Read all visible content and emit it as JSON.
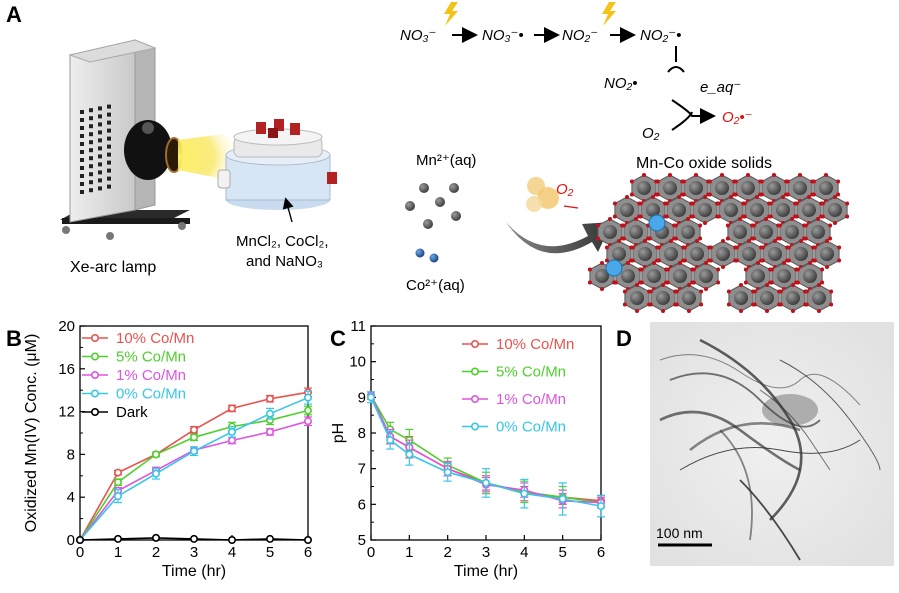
{
  "panels": {
    "A": "A",
    "B": "B",
    "C": "C",
    "D": "D"
  },
  "panel_a": {
    "lamp_label": "Xe-arc lamp",
    "reactor_label_line1": "MnCl₂, CoCl₂,",
    "reactor_label_line2": "and NaNO₃",
    "mn_ion": "Mn²⁺(aq)",
    "co_ion": "Co²⁺(aq)",
    "o2_label": "O₂",
    "solid_label": "Mn-Co oxide solids",
    "scheme": {
      "nitrate": "NO₃⁻",
      "nitrate_radical": "NO₃⁻•",
      "nitrite": "NO₂⁻",
      "nitrite_radical": "NO₂⁻•",
      "no2_radical": "NO₂•",
      "eaq": "e_aq⁻",
      "o2": "O₂",
      "superoxide": "O₂•⁻"
    },
    "colors": {
      "superoxide": "#e01010",
      "bolt": "#f3c318"
    }
  },
  "panel_d": {
    "scale_bar": "100 nm"
  },
  "chart_data": [
    {
      "id": "B",
      "type": "line",
      "xlabel": "Time (hr)",
      "ylabel": "Oxidized Mn(IV) Conc. (μM)",
      "xlim": [
        0,
        6
      ],
      "ylim": [
        0,
        20
      ],
      "xticks": [
        0,
        1,
        2,
        3,
        4,
        5,
        6
      ],
      "yticks": [
        0,
        4,
        8,
        12,
        16,
        20
      ],
      "legend_position": "top-left",
      "x": [
        0,
        1,
        2,
        3,
        4,
        5,
        6
      ],
      "series": [
        {
          "name": "10% Co/Mn",
          "color": "#e8534f",
          "values": [
            0,
            6.3,
            8.0,
            10.3,
            12.3,
            13.2,
            13.8
          ],
          "err": [
            0,
            0.2,
            0.2,
            0.3,
            0.3,
            0.3,
            0.4
          ]
        },
        {
          "name": "5%  Co/Mn",
          "color": "#4fcf2d",
          "values": [
            0,
            5.4,
            8.0,
            9.6,
            10.6,
            11.2,
            12.1
          ],
          "err": [
            0,
            0.3,
            0.2,
            0.3,
            0.4,
            0.4,
            0.4
          ]
        },
        {
          "name": "1%  Co/Mn",
          "color": "#dd55e0",
          "values": [
            0,
            4.6,
            6.5,
            8.4,
            9.3,
            10.1,
            11.1
          ],
          "err": [
            0,
            0.3,
            0.3,
            0.3,
            0.3,
            0.3,
            0.4
          ]
        },
        {
          "name": "0%  Co/Mn",
          "color": "#38c6e8",
          "values": [
            0,
            4.1,
            6.2,
            8.3,
            10.1,
            11.8,
            13.3
          ],
          "err": [
            0,
            0.6,
            0.5,
            0.4,
            0.5,
            0.5,
            0.6
          ]
        },
        {
          "name": "Dark",
          "color": "#000000",
          "values": [
            0,
            0.1,
            0.2,
            0.1,
            0.0,
            0.1,
            0.0
          ],
          "err": [
            0,
            0,
            0,
            0,
            0,
            0,
            0
          ]
        }
      ]
    },
    {
      "id": "C",
      "type": "line",
      "xlabel": "Time (hr)",
      "ylabel": "pH",
      "xlim": [
        0,
        6
      ],
      "ylim": [
        5,
        11
      ],
      "xticks": [
        0,
        1,
        2,
        3,
        4,
        5,
        6
      ],
      "yticks": [
        5,
        6,
        7,
        8,
        9,
        10,
        11
      ],
      "legend_position": "top-right",
      "x": [
        0,
        0.5,
        1,
        2,
        3,
        4,
        5,
        6
      ],
      "series": [
        {
          "name": "10% Co/Mn",
          "color": "#e8534f",
          "values": [
            9.05,
            7.9,
            7.6,
            7.0,
            6.6,
            6.3,
            6.2,
            6.1
          ],
          "err": [
            0.1,
            0.2,
            0.3,
            0.2,
            0.2,
            0.2,
            0.2,
            0.15
          ]
        },
        {
          "name": "5%  Co/Mn",
          "color": "#4fcf2d",
          "values": [
            9.05,
            8.1,
            7.8,
            7.1,
            6.6,
            6.35,
            6.2,
            6.05
          ],
          "err": [
            0.1,
            0.2,
            0.3,
            0.2,
            0.3,
            0.3,
            0.3,
            0.15
          ]
        },
        {
          "name": "1%  Co/Mn",
          "color": "#dd55e0",
          "values": [
            9.05,
            7.9,
            7.6,
            7.0,
            6.55,
            6.4,
            6.1,
            6.05
          ],
          "err": [
            0.1,
            0.2,
            0.2,
            0.2,
            0.2,
            0.2,
            0.2,
            0.15
          ]
        },
        {
          "name": "0%  Co/Mn",
          "color": "#38c6e8",
          "values": [
            9.0,
            7.8,
            7.4,
            6.9,
            6.6,
            6.3,
            6.15,
            5.95
          ],
          "err": [
            0.15,
            0.25,
            0.3,
            0.25,
            0.4,
            0.4,
            0.45,
            0.3
          ]
        }
      ]
    }
  ]
}
